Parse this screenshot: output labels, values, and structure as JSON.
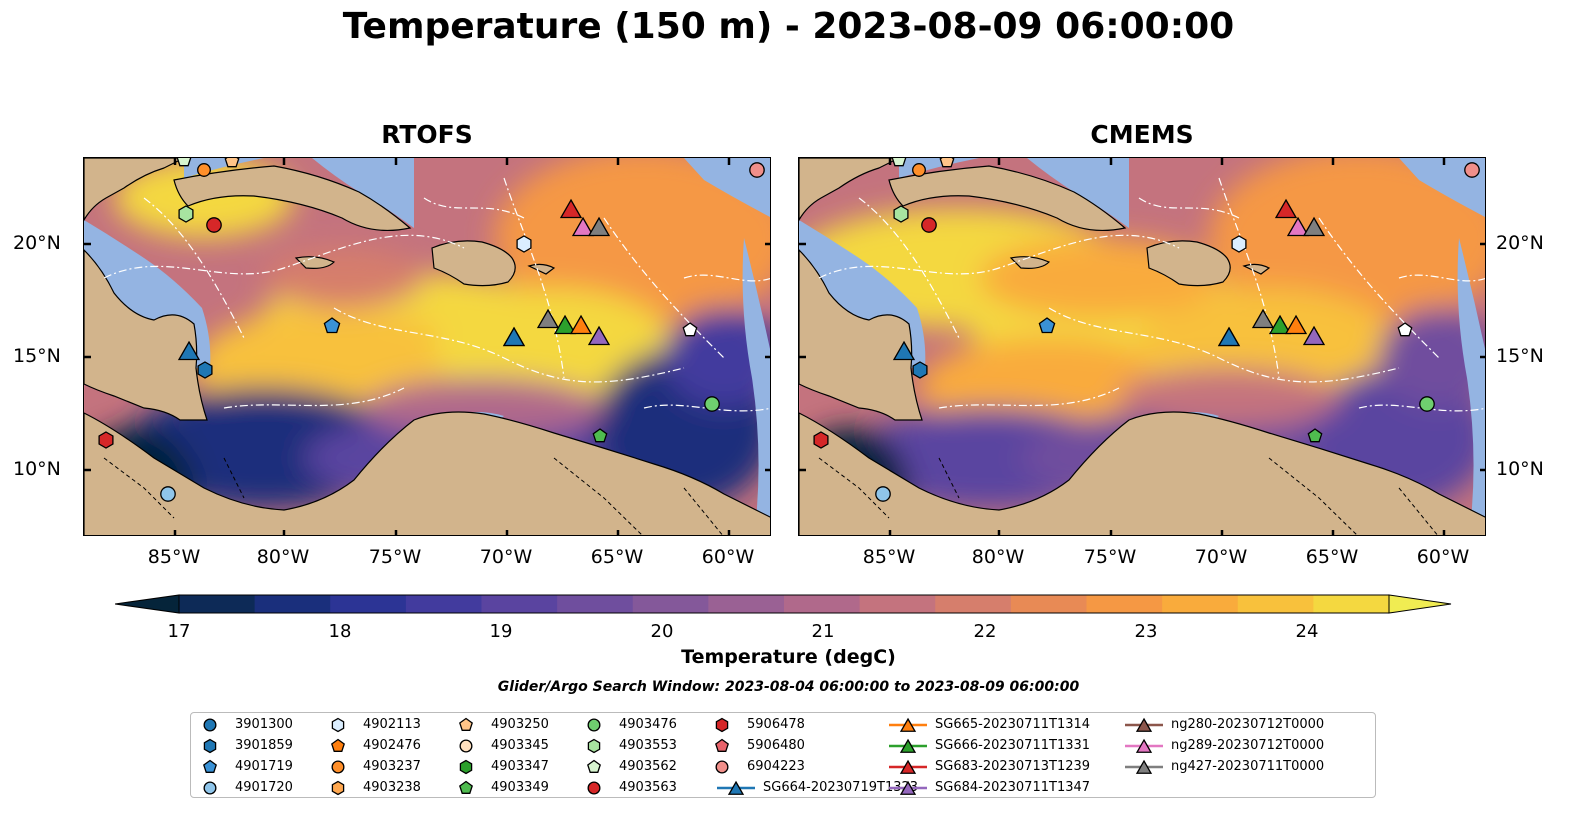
{
  "title": "Temperature (150 m) - 2023-08-09 06:00:00",
  "panels": [
    {
      "id": "rtofs",
      "title": "RTOFS"
    },
    {
      "id": "cmems",
      "title": "CMEMS"
    }
  ],
  "axes": {
    "lon_labels": [
      "85°W",
      "80°W",
      "75°W",
      "70°W",
      "65°W",
      "60°W"
    ],
    "lat_labels": [
      "20°N",
      "15°N",
      "10°N"
    ]
  },
  "colorbar": {
    "label": "Temperature (degC)",
    "ticks": [
      "17",
      "18",
      "19",
      "20",
      "21",
      "22",
      "23",
      "24"
    ],
    "range": [
      16.5,
      24.5
    ],
    "colors": [
      "#05243a",
      "#0d2a57",
      "#1a2f7c",
      "#2c3495",
      "#423b9e",
      "#5a44a0",
      "#6f4e9e",
      "#84589a",
      "#9a6194",
      "#b0698b",
      "#c4737e",
      "#d67e6c",
      "#e88a55",
      "#f59844",
      "#f9ab3c",
      "#f8c13c",
      "#f4d840",
      "#f0ec52"
    ]
  },
  "search_window": "Glider/Argo Search Window: 2023-08-04 06:00:00 to 2023-08-09 06:00:00",
  "land_color": "#d2b48c",
  "shallow_color": "#94b4e2",
  "legend": {
    "items": [
      {
        "label": "3901300",
        "marker": "circle",
        "color": "#1f77b4"
      },
      {
        "label": "3901859",
        "marker": "hexagon",
        "color": "#1f77b4"
      },
      {
        "label": "4901719",
        "marker": "pentagon",
        "color": "#3a92d6"
      },
      {
        "label": "4901720",
        "marker": "circle",
        "color": "#8fc5ea"
      },
      {
        "label": "4902113",
        "marker": "hexagon",
        "color": "#dbeeff"
      },
      {
        "label": "4902476",
        "marker": "pentagon",
        "color": "#ff7f0e"
      },
      {
        "label": "4903237",
        "marker": "circle",
        "color": "#ff8f2a"
      },
      {
        "label": "4903238",
        "marker": "hexagon",
        "color": "#ffa850"
      },
      {
        "label": "4903250",
        "marker": "pentagon",
        "color": "#ffc488"
      },
      {
        "label": "4903345",
        "marker": "circle",
        "color": "#ffe0bf"
      },
      {
        "label": "4903347",
        "marker": "hexagon",
        "color": "#2ca02c"
      },
      {
        "label": "4903349",
        "marker": "pentagon",
        "color": "#4fbb4f"
      },
      {
        "label": "4903476",
        "marker": "circle",
        "color": "#6fcf6f"
      },
      {
        "label": "4903553",
        "marker": "hexagon",
        "color": "#a8e4a0"
      },
      {
        "label": "4903562",
        "marker": "pentagon",
        "color": "#d8f5d0"
      },
      {
        "label": "4903563",
        "marker": "circle",
        "color": "#d62728"
      },
      {
        "label": "5906478",
        "marker": "hexagon",
        "color": "#d62728"
      },
      {
        "label": "5906480",
        "marker": "pentagon",
        "color": "#e8636b"
      },
      {
        "label": "6904223",
        "marker": "circle",
        "color": "#f08f8a"
      },
      {
        "label": "SG664-20230719T1323",
        "marker": "triangle-line",
        "color": "#1f77b4"
      },
      {
        "label": "SG665-20230711T1314",
        "marker": "triangle-line",
        "color": "#ff7f0e"
      },
      {
        "label": "SG666-20230711T1331",
        "marker": "triangle-line",
        "color": "#2ca02c"
      },
      {
        "label": "SG683-20230713T1239",
        "marker": "triangle-line",
        "color": "#d62728"
      },
      {
        "label": "SG684-20230711T1347",
        "marker": "triangle-line",
        "color": "#9467bd"
      },
      {
        "label": "ng280-20230712T0000",
        "marker": "triangle-line",
        "color": "#8c564b"
      },
      {
        "label": "ng289-20230712T0000",
        "marker": "triangle-line",
        "color": "#e377c2"
      },
      {
        "label": "ng427-20230711T0000",
        "marker": "triangle-line",
        "color": "#7f7f7f"
      }
    ]
  }
}
